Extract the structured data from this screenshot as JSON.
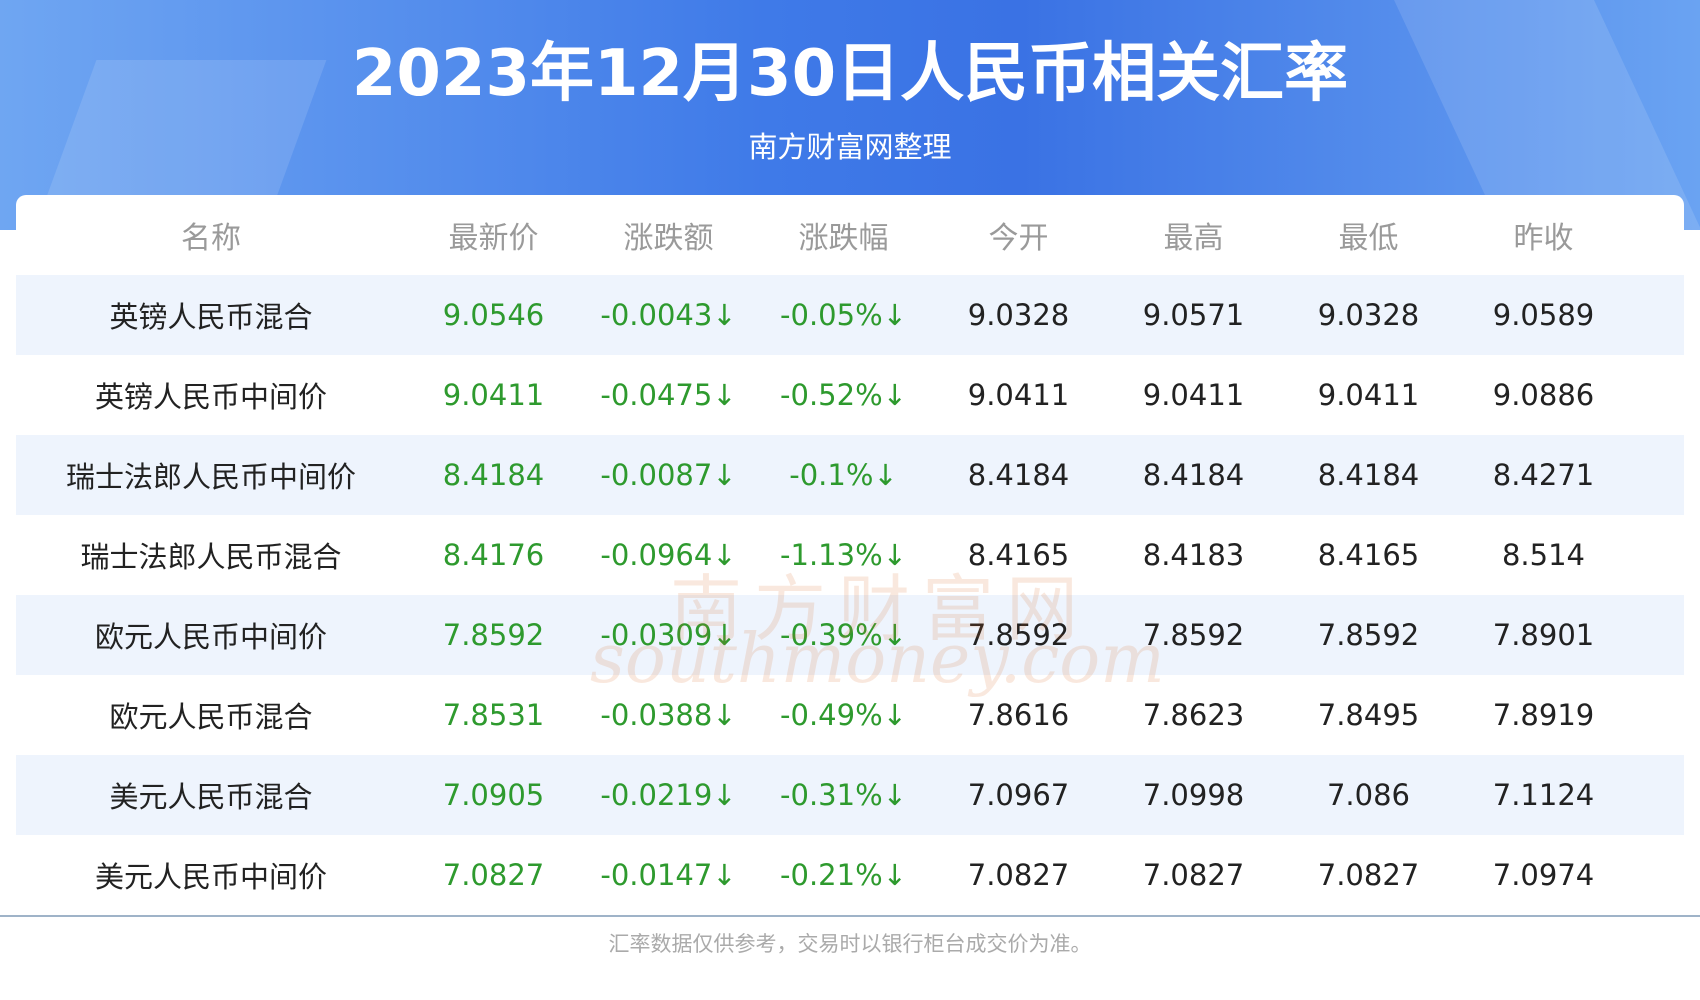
{
  "header": {
    "title": "2023年12月30日人民币相关汇率",
    "subtitle": "南方财富网整理"
  },
  "watermark": {
    "cn": "南方财富网",
    "en": "southmoney.com"
  },
  "table": {
    "columns": [
      "名称",
      "最新价",
      "涨跌额",
      "涨跌幅",
      "今开",
      "最高",
      "最低",
      "昨收"
    ],
    "rows": [
      [
        "英镑人民币混合",
        "9.0546",
        "-0.0043↓",
        "-0.05%↓",
        "9.0328",
        "9.0571",
        "9.0328",
        "9.0589"
      ],
      [
        "英镑人民币中间价",
        "9.0411",
        "-0.0475↓",
        "-0.52%↓",
        "9.0411",
        "9.0411",
        "9.0411",
        "9.0886"
      ],
      [
        "瑞士法郎人民币中间价",
        "8.4184",
        "-0.0087↓",
        "-0.1%↓",
        "8.4184",
        "8.4184",
        "8.4184",
        "8.4271"
      ],
      [
        "瑞士法郎人民币混合",
        "8.4176",
        "-0.0964↓",
        "-1.13%↓",
        "8.4165",
        "8.4183",
        "8.4165",
        "8.514"
      ],
      [
        "欧元人民币中间价",
        "7.8592",
        "-0.0309↓",
        "-0.39%↓",
        "7.8592",
        "7.8592",
        "7.8592",
        "7.8901"
      ],
      [
        "欧元人民币混合",
        "7.8531",
        "-0.0388↓",
        "-0.49%↓",
        "7.8616",
        "7.8623",
        "7.8495",
        "7.8919"
      ],
      [
        "美元人民币混合",
        "7.0905",
        "-0.0219↓",
        "-0.31%↓",
        "7.0967",
        "7.0998",
        "7.086",
        "7.1124"
      ],
      [
        "美元人民币中间价",
        "7.0827",
        "-0.0147↓",
        "-0.21%↓",
        "7.0827",
        "7.0827",
        "7.0827",
        "7.0974"
      ]
    ]
  },
  "footer": {
    "note": "汇率数据仅供参考，交易时以银行柜台成交价为准。"
  }
}
